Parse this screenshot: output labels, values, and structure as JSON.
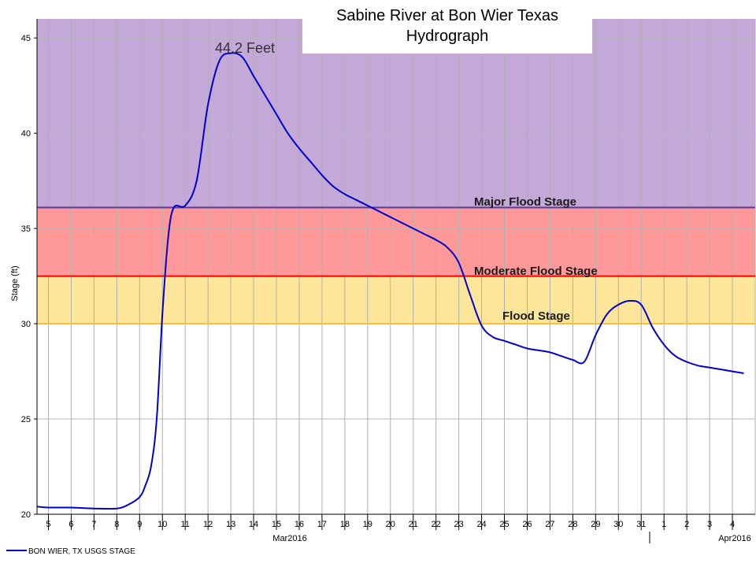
{
  "chart_data": {
    "type": "line",
    "title_line1": "Sabine River at Bon Wier Texas",
    "title_line2": "Hydrograph",
    "ylabel": "Stage (ft)",
    "ylim": [
      20,
      46
    ],
    "yticks": [
      20,
      25,
      30,
      35,
      40,
      45
    ],
    "x_day_ticks": [
      "5",
      "6",
      "7",
      "8",
      "9",
      "10",
      "11",
      "12",
      "13",
      "14",
      "15",
      "16",
      "17",
      "18",
      "19",
      "20",
      "21",
      "22",
      "23",
      "24",
      "25",
      "26",
      "27",
      "28",
      "29",
      "30",
      "31",
      "1",
      "2",
      "3",
      "4"
    ],
    "month_labels": [
      "Mar2016",
      "Apr2016"
    ],
    "grid": true,
    "legend_position": "bottom-left",
    "thresholds": [
      {
        "name": "Flood Stage",
        "value": 30.0,
        "color": "#f0c030",
        "fill": "#fde59a"
      },
      {
        "name": "Moderate Flood Stage",
        "value": 32.5,
        "color": "#ff0000",
        "fill": "#ff9999"
      },
      {
        "name": "Major Flood Stage",
        "value": 36.1,
        "color": "#5a3aa0",
        "fill": "#c3a8d8"
      }
    ],
    "peak_annotation": "44.2 Feet",
    "series": [
      {
        "name": "BON WIER, TX USGS STAGE",
        "color": "#0000cc",
        "x": [
          "2016-03-04T12:00",
          "2016-03-05T00:00",
          "2016-03-06T00:00",
          "2016-03-07T00:00",
          "2016-03-08T00:00",
          "2016-03-08T12:00",
          "2016-03-09T00:00",
          "2016-03-09T06:00",
          "2016-03-09T12:00",
          "2016-03-09T18:00",
          "2016-03-10T00:00",
          "2016-03-10T06:00",
          "2016-03-10T12:00",
          "2016-03-11T00:00",
          "2016-03-11T12:00",
          "2016-03-12T00:00",
          "2016-03-12T12:00",
          "2016-03-13T00:00",
          "2016-03-13T12:00",
          "2016-03-14T00:00",
          "2016-03-14T12:00",
          "2016-03-15T00:00",
          "2016-03-15T12:00",
          "2016-03-16T00:00",
          "2016-03-16T12:00",
          "2016-03-17T00:00",
          "2016-03-17T12:00",
          "2016-03-18T00:00",
          "2016-03-18T12:00",
          "2016-03-19T00:00",
          "2016-03-19T12:00",
          "2016-03-20T00:00",
          "2016-03-20T12:00",
          "2016-03-21T00:00",
          "2016-03-21T12:00",
          "2016-03-22T00:00",
          "2016-03-22T12:00",
          "2016-03-23T00:00",
          "2016-03-23T12:00",
          "2016-03-24T00:00",
          "2016-03-24T12:00",
          "2016-03-25T00:00",
          "2016-03-25T12:00",
          "2016-03-26T00:00",
          "2016-03-26T12:00",
          "2016-03-27T00:00",
          "2016-03-27T12:00",
          "2016-03-28T00:00",
          "2016-03-28T12:00",
          "2016-03-29T00:00",
          "2016-03-29T12:00",
          "2016-03-30T00:00",
          "2016-03-30T12:00",
          "2016-03-31T00:00",
          "2016-03-31T12:00",
          "2016-04-01T00:00",
          "2016-04-01T12:00",
          "2016-04-02T00:00",
          "2016-04-02T12:00",
          "2016-04-03T00:00",
          "2016-04-03T12:00",
          "2016-04-04T00:00",
          "2016-04-04T12:00"
        ],
        "values": [
          20.4,
          20.35,
          20.35,
          20.3,
          20.3,
          20.5,
          20.9,
          21.5,
          22.5,
          25.0,
          30.5,
          34.5,
          36.1,
          36.2,
          37.5,
          41.5,
          43.8,
          44.2,
          44.0,
          43.0,
          42.0,
          41.0,
          40.0,
          39.2,
          38.5,
          37.8,
          37.2,
          36.8,
          36.5,
          36.2,
          35.9,
          35.6,
          35.3,
          35.0,
          34.7,
          34.4,
          34.0,
          33.2,
          31.5,
          29.9,
          29.3,
          29.1,
          28.9,
          28.7,
          28.6,
          28.5,
          28.3,
          28.1,
          28.0,
          29.4,
          30.5,
          31.0,
          31.2,
          31.0,
          29.8,
          28.9,
          28.3,
          28.0,
          27.8,
          27.7,
          27.6,
          27.5,
          27.4
        ]
      }
    ]
  }
}
